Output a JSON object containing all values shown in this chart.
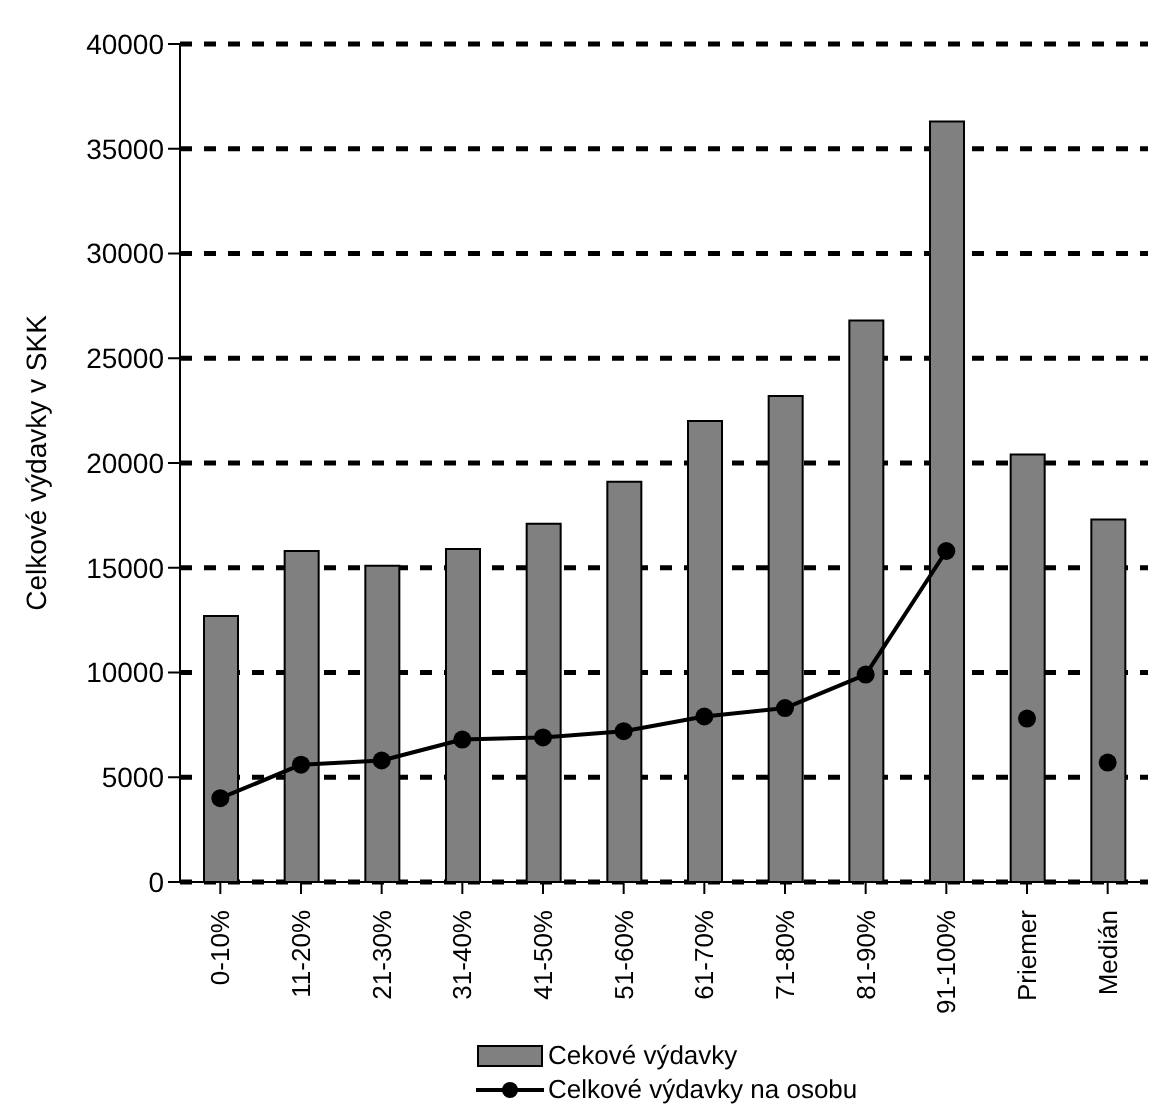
{
  "chart_data": {
    "type": "bar",
    "ylabel": "Celkové výdavky v SKK",
    "categories": [
      "0-10%",
      "11-20%",
      "21-30%",
      "31-40%",
      "41-50%",
      "51-60%",
      "61-70%",
      "71-80%",
      "81-90%",
      "91-100%",
      "Priemer",
      "Medián"
    ],
    "series": [
      {
        "name": "Cekové výdavky",
        "color": "#808080",
        "values": [
          12700,
          15800,
          15100,
          15900,
          17100,
          19100,
          22000,
          23200,
          26800,
          36300,
          20400,
          17300
        ]
      },
      {
        "name": "Celkové výdavky na osobu",
        "type": "line",
        "color": "#000000",
        "values": [
          4000,
          5600,
          5800,
          6800,
          6900,
          7200,
          7900,
          8300,
          9900,
          15800,
          null,
          null
        ]
      },
      {
        "type": "scatter",
        "color": "#000000",
        "values": [
          null,
          null,
          null,
          null,
          null,
          null,
          null,
          null,
          null,
          null,
          7800,
          5700
        ]
      }
    ],
    "ylim": [
      0,
      40000
    ],
    "yticks": [
      0,
      5000,
      10000,
      15000,
      20000,
      25000,
      30000,
      35000,
      40000
    ],
    "grid": "y",
    "legend": "bottom",
    "marker": "circle",
    "line_style": "solid"
  }
}
